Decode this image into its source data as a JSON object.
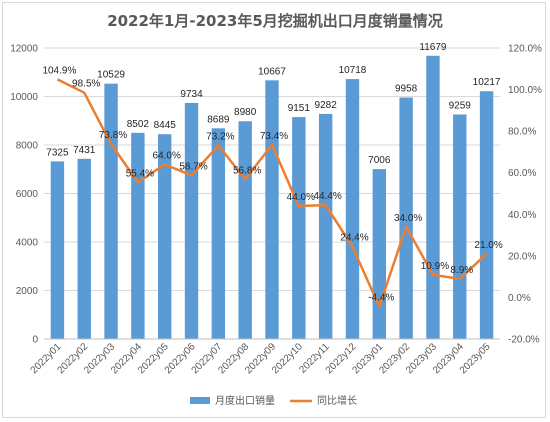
{
  "chart_data": {
    "type": "bar",
    "title": "2022年1月-2023年5月挖掘机出口月度销量情况",
    "categories": [
      "2022y01",
      "2022y02",
      "2022y03",
      "2022y04",
      "2022y05",
      "2022y06",
      "2022y07",
      "2022y08",
      "2022y09",
      "2022y10",
      "2022y11",
      "2022y12",
      "2023y01",
      "2023y02",
      "2023y03",
      "2023y04",
      "2023y05"
    ],
    "series": [
      {
        "name": "月度出口销量",
        "type": "bar",
        "axis": "left",
        "color": "#5b9bd5",
        "values": [
          7325,
          7431,
          10529,
          8502,
          8445,
          9734,
          8689,
          8980,
          10667,
          9151,
          9282,
          10718,
          7006,
          9958,
          11679,
          9259,
          10217
        ],
        "labels": [
          "7325",
          "7431",
          "10529",
          "8502",
          "8445",
          "9734",
          "8689",
          "8980",
          "10667",
          "9151",
          "9282",
          "10718",
          "7006",
          "9958",
          "11679",
          "9259",
          "10217"
        ]
      },
      {
        "name": "同比增长",
        "type": "line",
        "axis": "right",
        "color": "#ed7d31",
        "values": [
          104.9,
          98.5,
          73.8,
          55.4,
          64.0,
          58.7,
          73.2,
          56.8,
          73.4,
          44.0,
          44.4,
          24.4,
          -4.4,
          34.0,
          10.9,
          8.9,
          21.0
        ],
        "labels": [
          "104.9%",
          "98.5%",
          "73.8%",
          "55.4%",
          "64.0%",
          "58.7%",
          "73.2%",
          "56.8%",
          "73.4%",
          "44.0%",
          "44.4%",
          "24.4%",
          "-4.4%",
          "34.0%",
          "10.9%",
          "8.9%",
          "21.0%"
        ]
      }
    ],
    "y_left": {
      "min": 0,
      "max": 12000,
      "ticks": [
        "0",
        "2000",
        "4000",
        "6000",
        "8000",
        "10000",
        "12000"
      ]
    },
    "y_right": {
      "min": -20,
      "max": 120,
      "ticks": [
        "-20.0%",
        "0.0%",
        "20.0%",
        "40.0%",
        "60.0%",
        "80.0%",
        "100.0%",
        "120.0%"
      ]
    },
    "grid": true,
    "legend_position": "bottom-center"
  }
}
